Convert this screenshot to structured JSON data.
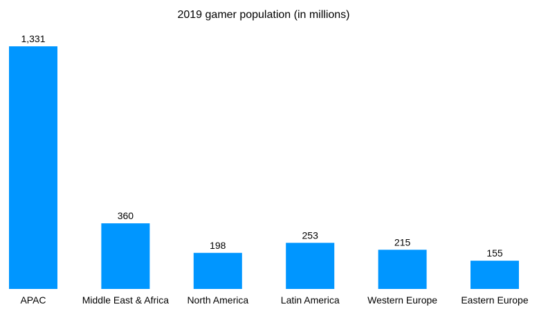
{
  "chart_data": {
    "type": "bar",
    "title": "2019 gamer population (in millions)",
    "categories": [
      "APAC",
      "Middle East & Africa",
      "North America",
      "Latin America",
      "Western Europe",
      "Eastern Europe"
    ],
    "values": [
      1331,
      360,
      198,
      253,
      215,
      155
    ],
    "value_labels": [
      "1,331",
      "360",
      "198",
      "253",
      "215",
      "155"
    ],
    "xlabel": "",
    "ylabel": "",
    "ylim": [
      0,
      1331
    ],
    "grid": false,
    "legend": "none",
    "bar_color": "#0096ff"
  }
}
